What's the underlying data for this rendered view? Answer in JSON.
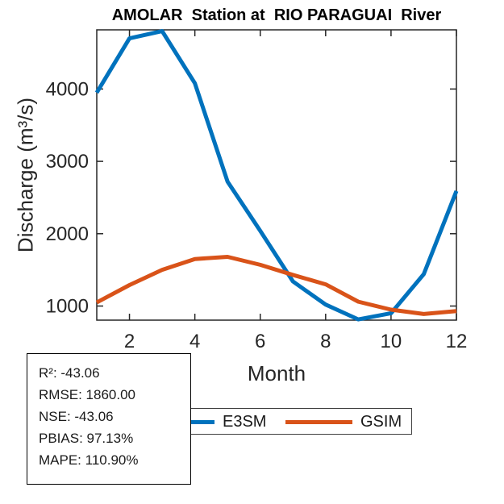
{
  "title": "AMOLAR  Station at  RIO PARAGUAI  River",
  "chart_data": {
    "type": "line",
    "title": "AMOLAR  Station at  RIO PARAGUAI  River",
    "xlabel": "Month",
    "ylabel": "Discharge (m³/s)",
    "x": [
      1,
      2,
      3,
      4,
      5,
      6,
      7,
      8,
      9,
      10,
      11,
      12
    ],
    "series": [
      {
        "name": "E3SM",
        "color": "#0072BD",
        "values": [
          3950,
          4700,
          4800,
          4080,
          2720,
          2040,
          1340,
          1020,
          815,
          900,
          1440,
          2590
        ]
      },
      {
        "name": "GSIM",
        "color": "#D95319",
        "values": [
          1050,
          1290,
          1500,
          1650,
          1680,
          1570,
          1430,
          1300,
          1060,
          950,
          890,
          930
        ]
      }
    ],
    "xticks": [
      2,
      4,
      6,
      8,
      10,
      12
    ],
    "yticks": [
      1000,
      2000,
      3000,
      4000
    ],
    "xlim": [
      1,
      12
    ],
    "ylim": [
      805,
      4818
    ],
    "grid": false,
    "legend_position": "below-horizontal"
  },
  "stats": {
    "lines": [
      "R²: -43.06",
      "RMSE: 1860.00",
      "NSE: -43.06",
      "PBIAS: 97.13%",
      "MAPE: 110.90%"
    ]
  },
  "legend": {
    "entries": [
      "E3SM",
      "GSIM"
    ]
  }
}
